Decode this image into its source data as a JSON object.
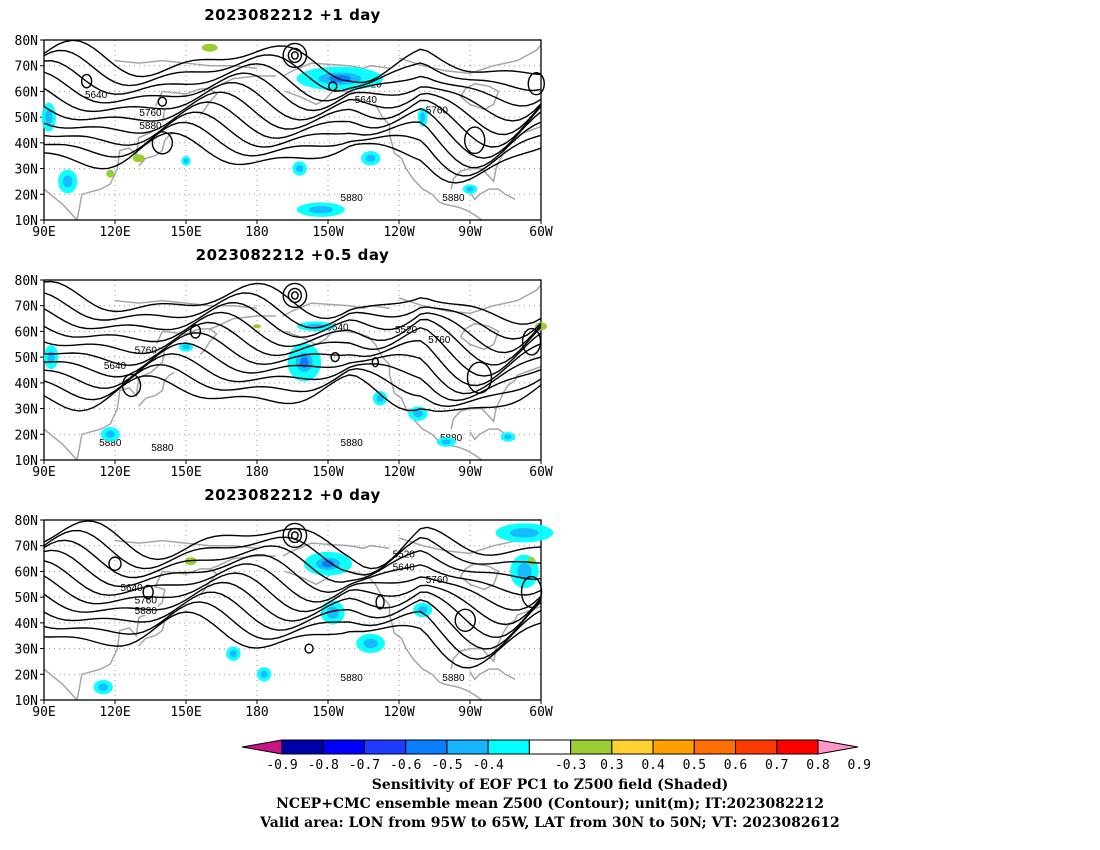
{
  "panels": [
    {
      "title": "2023082212 +1 day",
      "labels": [
        {
          "text": "5520",
          "lon": -132,
          "lat": 63
        },
        {
          "text": "5640",
          "lon": -134,
          "lat": 57
        },
        {
          "text": "5640",
          "lon": 112,
          "lat": 59
        },
        {
          "text": "5760",
          "lon": 135,
          "lat": 52
        },
        {
          "text": "5880",
          "lon": 135,
          "lat": 47
        },
        {
          "text": "5760",
          "lon": -104,
          "lat": 53
        },
        {
          "text": "5880",
          "lon": -140,
          "lat": 19
        },
        {
          "text": "5880",
          "lon": -97,
          "lat": 19
        }
      ]
    },
    {
      "title": "2023082212 +0.5 day",
      "labels": [
        {
          "text": "5640",
          "lon": -146,
          "lat": 62
        },
        {
          "text": "5520",
          "lon": -117,
          "lat": 61
        },
        {
          "text": "5640",
          "lon": 120,
          "lat": 47
        },
        {
          "text": "5760",
          "lon": 133,
          "lat": 53
        },
        {
          "text": "5760",
          "lon": -103,
          "lat": 57
        },
        {
          "text": "5880",
          "lon": 118,
          "lat": 17
        },
        {
          "text": "5880",
          "lon": 140,
          "lat": 15
        },
        {
          "text": "5880",
          "lon": -140,
          "lat": 17
        },
        {
          "text": "5880",
          "lon": -98,
          "lat": 19
        }
      ]
    },
    {
      "title": "2023082212 +0 day",
      "labels": [
        {
          "text": "5520",
          "lon": -118,
          "lat": 67
        },
        {
          "text": "5640",
          "lon": -118,
          "lat": 62
        },
        {
          "text": "5640",
          "lon": 127,
          "lat": 54
        },
        {
          "text": "5760",
          "lon": 133,
          "lat": 49
        },
        {
          "text": "5880",
          "lon": 133,
          "lat": 45
        },
        {
          "text": "5760",
          "lon": -104,
          "lat": 57
        },
        {
          "text": "5880",
          "lon": -140,
          "lat": 19
        },
        {
          "text": "5880",
          "lon": -97,
          "lat": 19
        }
      ]
    }
  ],
  "map_axes": {
    "lon_range": [
      90,
      300
    ],
    "lat_range": [
      10,
      80
    ],
    "lon_ticks": [
      {
        "value": 90,
        "label": "90E"
      },
      {
        "value": 120,
        "label": "120E"
      },
      {
        "value": 150,
        "label": "150E"
      },
      {
        "value": 180,
        "label": "180"
      },
      {
        "value": 210,
        "label": "150W"
      },
      {
        "value": 240,
        "label": "120W"
      },
      {
        "value": 270,
        "label": "90W"
      },
      {
        "value": 300,
        "label": "60W"
      }
    ],
    "lat_ticks": [
      {
        "value": 80,
        "label": "80N"
      },
      {
        "value": 70,
        "label": "70N"
      },
      {
        "value": 60,
        "label": "60N"
      },
      {
        "value": 50,
        "label": "50N"
      },
      {
        "value": 40,
        "label": "40N"
      },
      {
        "value": 30,
        "label": "30N"
      },
      {
        "value": 20,
        "label": "20N"
      },
      {
        "value": 10,
        "label": "10N"
      }
    ]
  },
  "colorbar": {
    "ticks": [
      "-0.9",
      "-0.8",
      "-0.7",
      "-0.6",
      "-0.5",
      "-0.4",
      "-0.3",
      "0.3",
      "0.4",
      "0.5",
      "0.6",
      "0.7",
      "0.8",
      "0.9"
    ],
    "colors": {
      "below": "#c71585",
      "boxes": [
        "#0000a8",
        "#0000ff",
        "#1e3cff",
        "#0a7dff",
        "#18b4ff",
        "#00ffff",
        "#ffffff",
        "#9acd32",
        "#ffd232",
        "#ffa000",
        "#ff6e00",
        "#ff3c00",
        "#ff0000"
      ],
      "above": "#ff96c8"
    }
  },
  "caption": [
    "Sensitivity of EOF PC1 to Z500 field (Shaded)",
    "NCEP+CMC ensemble mean Z500 (Contour); unit(m); IT:2023082212",
    "Valid area: LON from 95W to 65W, LAT from 30N to 50N; VT: 2023082612"
  ]
}
